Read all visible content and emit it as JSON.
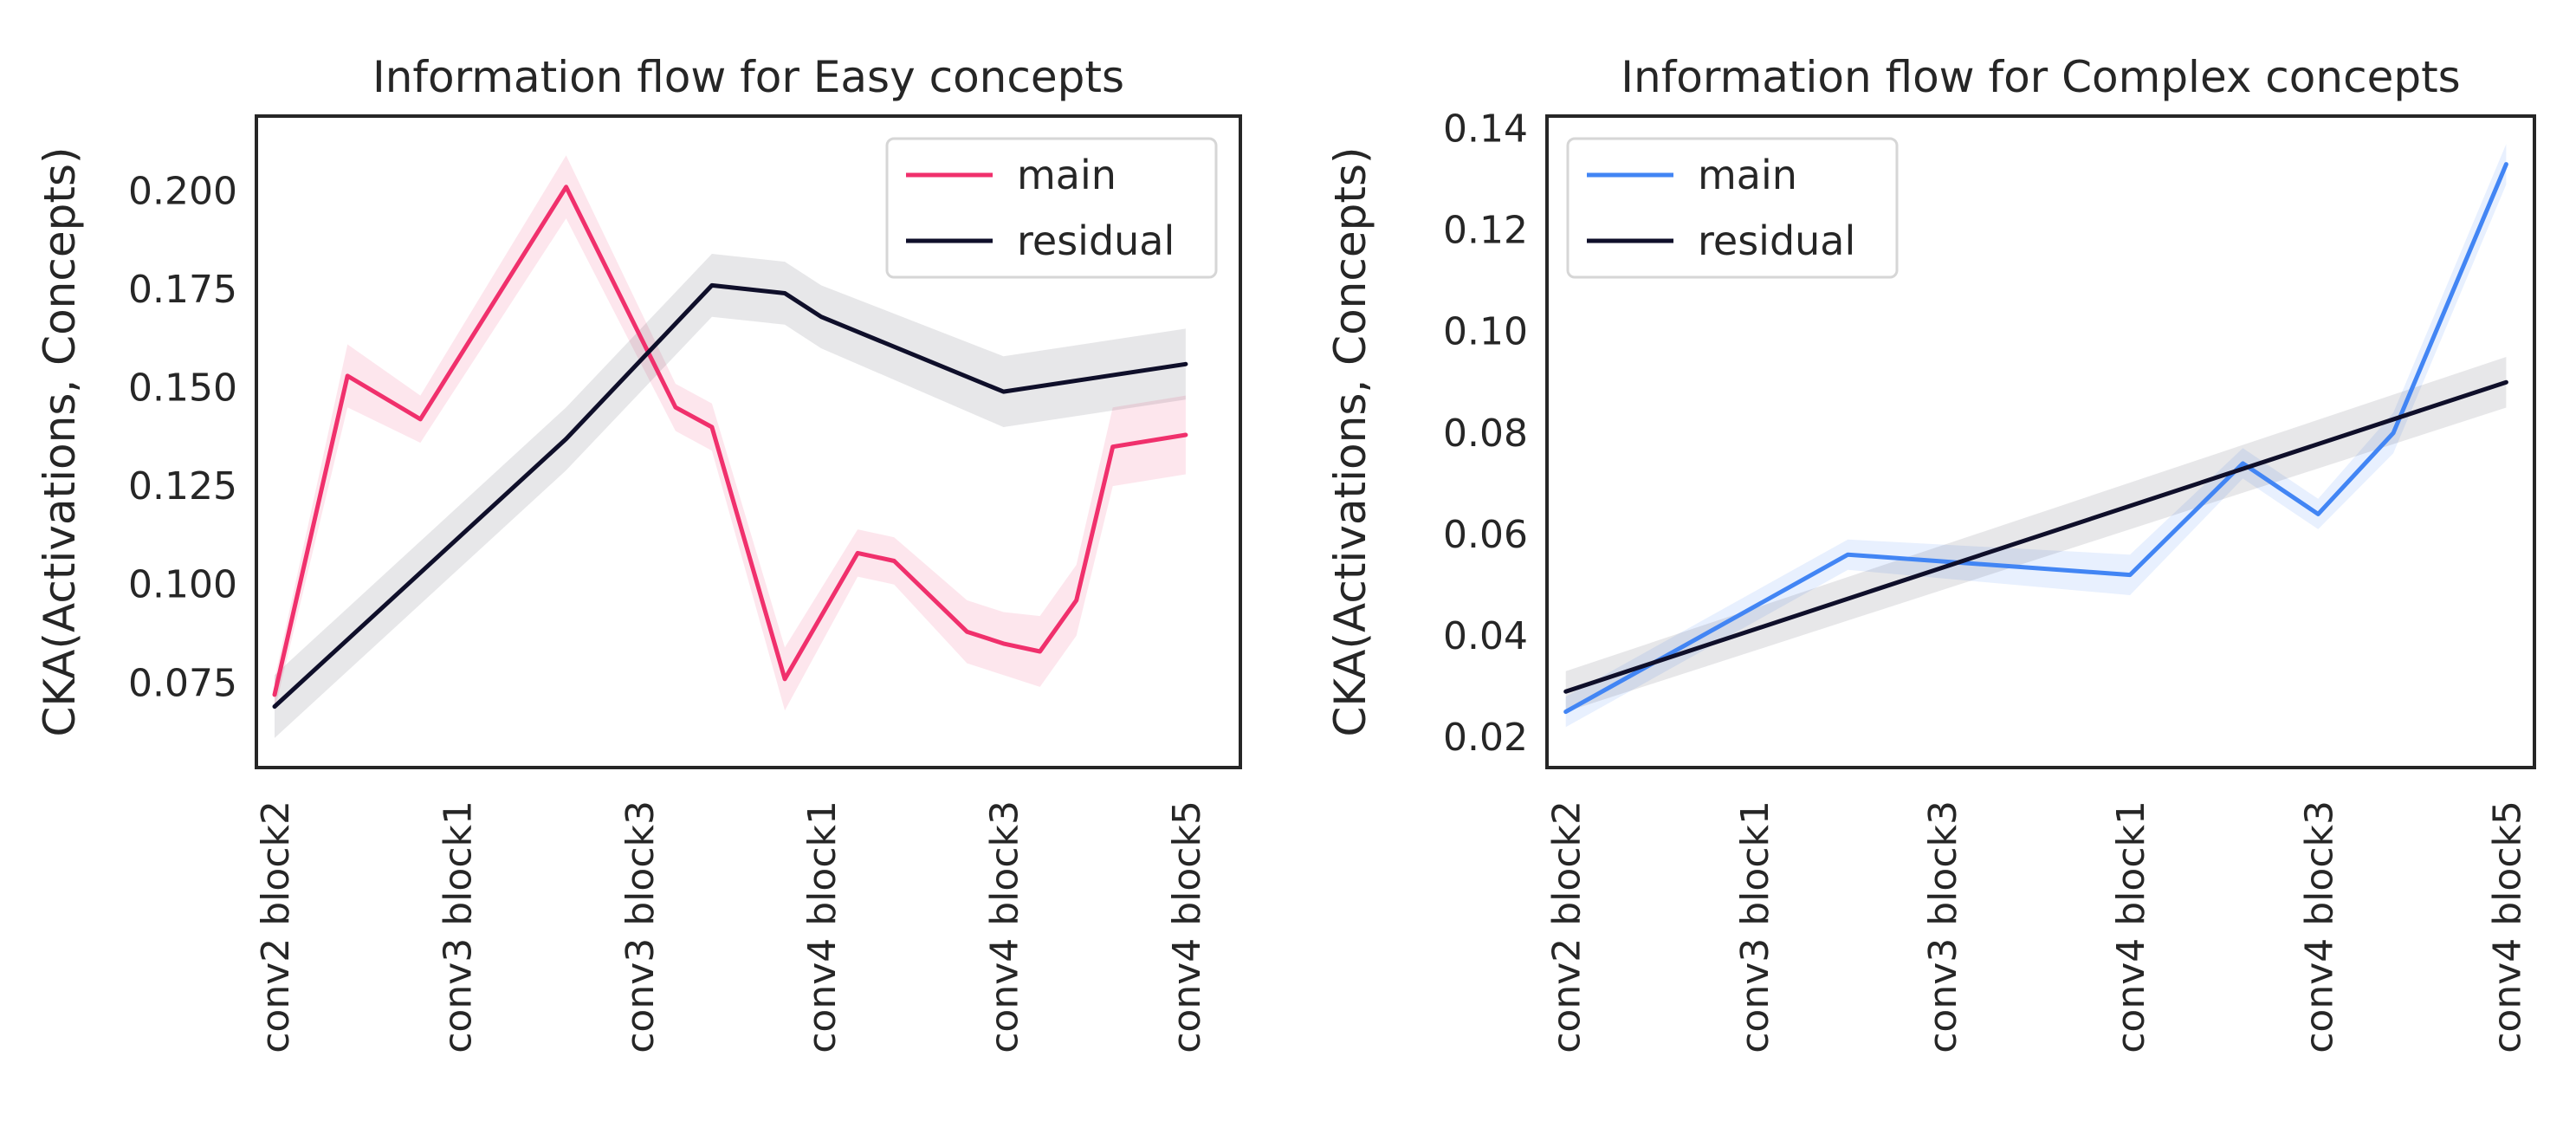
{
  "chart_data": [
    {
      "type": "line",
      "title": "Information flow for Easy concepts",
      "xlabel": "",
      "ylabel": "CKA(Activations, Concepts)",
      "categories": [
        "conv2 block2",
        "conv3 block1",
        "conv3 block3",
        "conv4 block1",
        "conv4 block3",
        "conv4 block5"
      ],
      "xlim": [
        -0.1,
        5.3
      ],
      "ylim": [
        0.0535,
        0.219
      ],
      "yticks": [
        0.075,
        0.1,
        0.125,
        0.15,
        0.175,
        0.2
      ],
      "ytick_labels": [
        "0.075",
        "0.100",
        "0.125",
        "0.150",
        "0.175",
        "0.200"
      ],
      "grid": false,
      "legend_position": "top-right",
      "series": [
        {
          "name": "main",
          "color": "#f0306c",
          "x": [
            0,
            0.4,
            0.8,
            1.6,
            2.2,
            2.4,
            2.8,
            3.2,
            3.4,
            3.8,
            4.0,
            4.2,
            4.4,
            4.6,
            5.0
          ],
          "y": [
            0.072,
            0.153,
            0.142,
            0.201,
            0.145,
            0.14,
            0.076,
            0.108,
            0.106,
            0.088,
            0.085,
            0.083,
            0.096,
            0.135,
            0.138
          ],
          "ci": [
            0.004,
            0.008,
            0.006,
            0.008,
            0.006,
            0.006,
            0.008,
            0.006,
            0.006,
            0.008,
            0.008,
            0.009,
            0.009,
            0.01,
            0.01
          ]
        },
        {
          "name": "residual",
          "color": "#0f0f2a",
          "x": [
            0,
            1.6,
            2.4,
            2.8,
            3.0,
            4.0,
            5.0
          ],
          "y": [
            0.069,
            0.137,
            0.176,
            0.174,
            0.168,
            0.149,
            0.156
          ],
          "ci": [
            0.008,
            0.008,
            0.008,
            0.008,
            0.008,
            0.009,
            0.009
          ]
        }
      ]
    },
    {
      "type": "line",
      "title": "Information flow for Complex concepts",
      "xlabel": "",
      "ylabel": "CKA(Activations, Concepts)",
      "categories": [
        "conv2 block2",
        "conv3 block1",
        "conv3 block3",
        "conv4 block1",
        "conv4 block3",
        "conv4 block5"
      ],
      "xlim": [
        -0.1,
        5.15
      ],
      "ylim": [
        0.014,
        0.1425
      ],
      "yticks": [
        0.02,
        0.04,
        0.06,
        0.08,
        0.1,
        0.12,
        0.14
      ],
      "ytick_labels": [
        "0.02",
        "0.04",
        "0.06",
        "0.08",
        "0.10",
        "0.12",
        "0.14"
      ],
      "grid": false,
      "legend_position": "top-left",
      "series": [
        {
          "name": "main",
          "color": "#4285f4",
          "x": [
            0,
            1.5,
            3.0,
            3.6,
            4.0,
            4.4,
            5.0
          ],
          "y": [
            0.025,
            0.056,
            0.052,
            0.074,
            0.064,
            0.08,
            0.133
          ],
          "ci": [
            0.003,
            0.003,
            0.004,
            0.003,
            0.003,
            0.004,
            0.004
          ]
        },
        {
          "name": "residual",
          "color": "#0f0f2a",
          "x": [
            0,
            5.0
          ],
          "y": [
            0.029,
            0.09
          ],
          "ci": [
            0.004,
            0.005
          ]
        }
      ]
    }
  ]
}
